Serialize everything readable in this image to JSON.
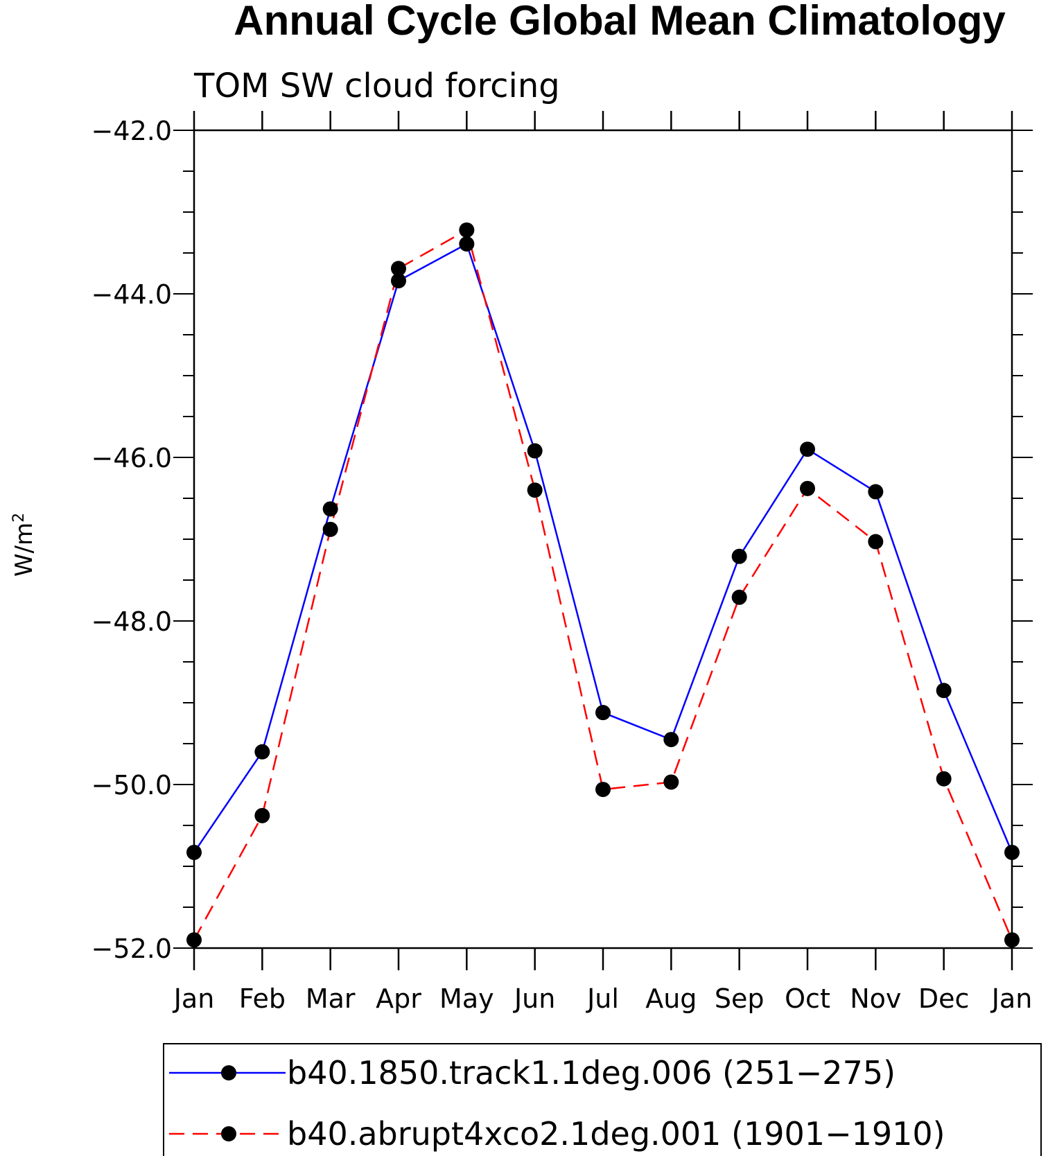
{
  "chart_data": {
    "type": "line",
    "title": "Annual Cycle Global Mean Climatology",
    "subtitle": "TOM SW cloud forcing",
    "ylabel": "W/m",
    "ylabel_superscript": "2",
    "xlabel": "",
    "categories": [
      "Jan",
      "Feb",
      "Mar",
      "Apr",
      "May",
      "Jun",
      "Jul",
      "Aug",
      "Sep",
      "Oct",
      "Nov",
      "Dec",
      "Jan"
    ],
    "ylim": [
      -52.0,
      -42.0
    ],
    "yticks": [
      "-42.0",
      "-44.0",
      "-46.0",
      "-48.0",
      "-50.0",
      "-52.0"
    ],
    "ytick_values": [
      -42,
      -44,
      -46,
      -48,
      -50,
      -52
    ],
    "series": [
      {
        "name": "b40.1850.track1.1deg.006 (251−275)",
        "color": "#0000ff",
        "style": "solid",
        "values": [
          -50.83,
          -49.6,
          -46.63,
          -43.84,
          -43.39,
          -45.92,
          -49.12,
          -49.45,
          -47.21,
          -45.9,
          -46.42,
          -48.85,
          -50.83
        ]
      },
      {
        "name": "b40.abrupt4xco2.1deg.001 (1901−1910)",
        "color": "#ff0000",
        "style": "dashed",
        "values": [
          -51.9,
          -50.38,
          -46.88,
          -43.69,
          -43.22,
          -46.4,
          -50.06,
          -49.97,
          -47.71,
          -46.38,
          -47.03,
          -49.93,
          -51.9
        ]
      }
    ],
    "legend_position": "bottom"
  }
}
